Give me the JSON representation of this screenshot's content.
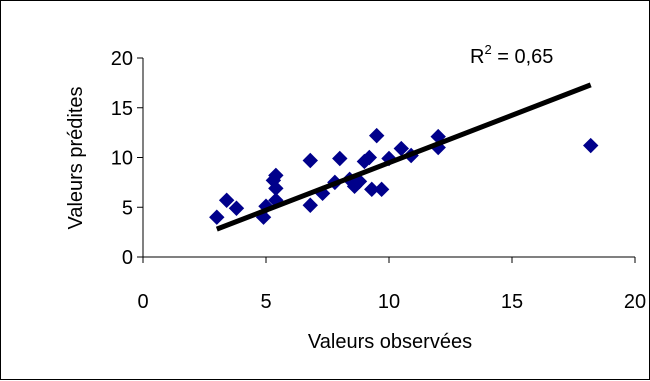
{
  "chart_data": {
    "type": "scatter",
    "title": "",
    "xlabel": "Valeurs observées",
    "ylabel": "Valeurs prédites",
    "xlim": [
      0,
      20
    ],
    "ylim": [
      0,
      20
    ],
    "x_ticks": [
      "0",
      "5",
      "10",
      "15",
      "20"
    ],
    "y_ticks": [
      "0",
      "5",
      "10",
      "15",
      "20"
    ],
    "grid": false,
    "legend": "none",
    "series": [
      {
        "marker": "diamond",
        "color": "#00008b",
        "points": [
          {
            "x": 3.0,
            "y": 4.0
          },
          {
            "x": 3.4,
            "y": 5.7
          },
          {
            "x": 3.8,
            "y": 4.9
          },
          {
            "x": 4.9,
            "y": 4.0
          },
          {
            "x": 5.0,
            "y": 5.1
          },
          {
            "x": 5.3,
            "y": 7.7
          },
          {
            "x": 5.4,
            "y": 8.2
          },
          {
            "x": 5.4,
            "y": 6.9
          },
          {
            "x": 5.4,
            "y": 5.7
          },
          {
            "x": 6.8,
            "y": 9.7
          },
          {
            "x": 6.8,
            "y": 5.2
          },
          {
            "x": 7.3,
            "y": 6.4
          },
          {
            "x": 7.8,
            "y": 7.5
          },
          {
            "x": 8.0,
            "y": 9.9
          },
          {
            "x": 8.4,
            "y": 7.8
          },
          {
            "x": 8.6,
            "y": 7.1
          },
          {
            "x": 8.8,
            "y": 7.6
          },
          {
            "x": 9.0,
            "y": 9.6
          },
          {
            "x": 9.2,
            "y": 10.0
          },
          {
            "x": 9.3,
            "y": 6.8
          },
          {
            "x": 9.5,
            "y": 12.2
          },
          {
            "x": 9.7,
            "y": 6.8
          },
          {
            "x": 10.0,
            "y": 9.9
          },
          {
            "x": 10.5,
            "y": 10.9
          },
          {
            "x": 10.9,
            "y": 10.2
          },
          {
            "x": 12.0,
            "y": 12.1
          },
          {
            "x": 12.0,
            "y": 11.0
          },
          {
            "x": 18.2,
            "y": 11.2
          }
        ]
      }
    ],
    "trendline": {
      "from": {
        "x": 3.0,
        "y": 2.8
      },
      "to": {
        "x": 18.2,
        "y": 17.3
      },
      "color": "#000000"
    },
    "annotation": {
      "prefix": "R",
      "superscript": "2",
      "suffix": " = 0,65"
    }
  }
}
